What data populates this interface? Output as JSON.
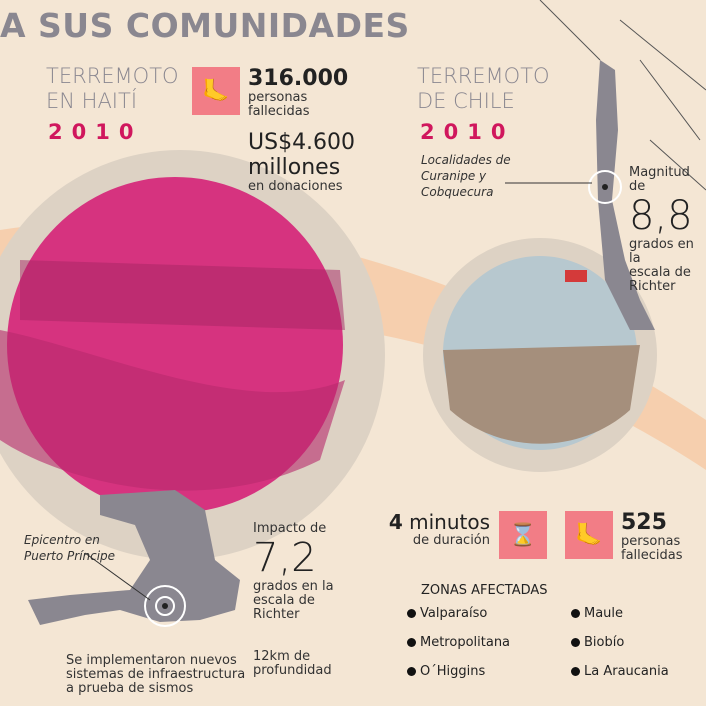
{
  "title": "A SUS COMUNIDADES",
  "haiti": {
    "heading_line1": "TERREMOTO",
    "heading_line2": "EN HAITÍ",
    "year": "2010",
    "deaths_value": "316.000",
    "deaths_label_1": "personas",
    "deaths_label_2": "fallecidas",
    "donations_value": "US$4.600",
    "donations_unit": "millones",
    "donations_label": "en donaciones",
    "epicenter_1": "Epicentro en",
    "epicenter_2": "Puerto Príncipe",
    "impact_label": "Impacto de",
    "magnitude": "7,2",
    "scale_1": "grados en la",
    "scale_2": "escala de",
    "scale_3": "Richter",
    "depth_1": "12km de",
    "depth_2": "profundidad",
    "infra_1": "Se implementaron nuevos",
    "infra_2": "sistemas de infraestructura",
    "infra_3": "a prueba de sismos",
    "icon": "toe-tag-icon"
  },
  "chile": {
    "heading_line1": "TERREMOTO",
    "heading_line2": "DE CHILE",
    "year": "2010",
    "localities_1": "Localidades de",
    "localities_2": "Curanipe y",
    "localities_3": "Cobquecura",
    "magnitude_label": "Magnitud de",
    "magnitude": "8,8",
    "scale_1": "grados en la",
    "scale_2": "escala de",
    "scale_3": "Richter",
    "duration_value": "4",
    "duration_unit": "minutos",
    "duration_label": "de duración",
    "deaths_value": "525",
    "deaths_label_1": "personas",
    "deaths_label_2": "fallecidas",
    "zones_title": "ZONAS AFECTADAS",
    "zones": [
      "Valparaíso",
      "Maule",
      "Metropolitana",
      "Biobío",
      "O´Higgins",
      "La Araucania"
    ],
    "icons": [
      "hourglass-icon",
      "toe-tag-icon"
    ]
  },
  "colors": {
    "accent": "#d0175d",
    "icon_bg": "#f27d86",
    "background": "#f4e6d4",
    "gray": "#8a8790",
    "band": "#f6cfae"
  }
}
